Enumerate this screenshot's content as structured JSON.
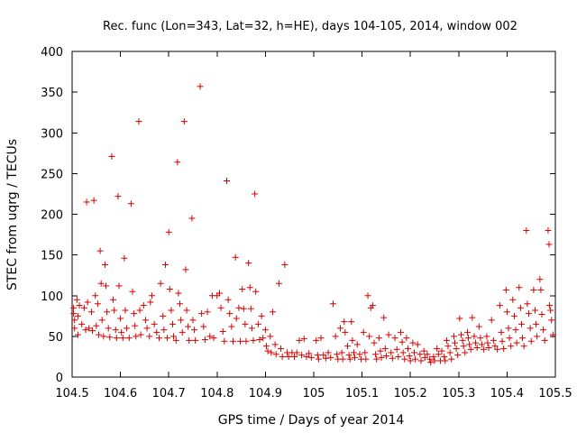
{
  "chart_data": {
    "type": "scatter",
    "title": "Rec. func (Lon=343, Lat=32, h=HE), days 104-105, 2014, window 002",
    "xlabel": "GPS time / Days of year 2014",
    "ylabel": "STEC from uqrg / TECUs",
    "xlim": [
      104.5,
      105.5
    ],
    "ylim": [
      0,
      400
    ],
    "xticks": [
      104.5,
      104.6,
      104.7,
      104.8,
      104.9,
      105,
      105.1,
      105.2,
      105.3,
      105.4,
      105.5
    ],
    "xtick_labels": [
      "104.5",
      "104.6",
      "104.7",
      "104.8",
      "104.9",
      "105",
      "105.1",
      "105.2",
      "105.3",
      "105.4",
      "105.5"
    ],
    "yticks": [
      0,
      50,
      100,
      150,
      200,
      250,
      300,
      350,
      400
    ],
    "ytick_labels": [
      "0",
      "50",
      "100",
      "150",
      "200",
      "250",
      "300",
      "350",
      "400"
    ],
    "marker": "+",
    "color": "#d40000",
    "grid": false,
    "series": [
      {
        "name": "STEC",
        "points": [
          [
            104.503,
            85
          ],
          [
            104.503,
            78
          ],
          [
            104.505,
            70
          ],
          [
            104.505,
            60
          ],
          [
            104.51,
            95
          ],
          [
            104.512,
            75
          ],
          [
            104.512,
            52
          ],
          [
            104.515,
            88
          ],
          [
            104.52,
            65
          ],
          [
            104.525,
            85
          ],
          [
            104.528,
            58
          ],
          [
            104.53,
            215
          ],
          [
            104.532,
            92
          ],
          [
            104.535,
            60
          ],
          [
            104.54,
            80
          ],
          [
            104.542,
            57
          ],
          [
            104.545,
            217
          ],
          [
            104.548,
            100
          ],
          [
            104.55,
            63
          ],
          [
            104.553,
            90
          ],
          [
            104.555,
            52
          ],
          [
            104.558,
            155
          ],
          [
            104.56,
            115
          ],
          [
            104.562,
            70
          ],
          [
            104.565,
            50
          ],
          [
            104.568,
            138
          ],
          [
            104.57,
            112
          ],
          [
            104.572,
            80
          ],
          [
            104.575,
            60
          ],
          [
            104.578,
            49
          ],
          [
            104.582,
            271
          ],
          [
            104.585,
            95
          ],
          [
            104.587,
            82
          ],
          [
            104.59,
            58
          ],
          [
            104.592,
            48
          ],
          [
            104.595,
            222
          ],
          [
            104.597,
            112
          ],
          [
            104.6,
            72
          ],
          [
            104.602,
            55
          ],
          [
            104.605,
            48
          ],
          [
            104.608,
            146
          ],
          [
            104.61,
            82
          ],
          [
            104.613,
            60
          ],
          [
            104.618,
            48
          ],
          [
            104.622,
            213
          ],
          [
            104.625,
            105
          ],
          [
            104.628,
            78
          ],
          [
            104.63,
            63
          ],
          [
            104.632,
            50
          ],
          [
            104.638,
            314
          ],
          [
            104.64,
            82
          ],
          [
            104.642,
            52
          ],
          [
            104.648,
            88
          ],
          [
            104.652,
            70
          ],
          [
            104.655,
            60
          ],
          [
            104.66,
            50
          ],
          [
            104.662,
            92
          ],
          [
            104.665,
            100
          ],
          [
            104.67,
            65
          ],
          [
            104.675,
            55
          ],
          [
            104.68,
            48
          ],
          [
            104.683,
            115
          ],
          [
            104.688,
            75
          ],
          [
            104.69,
            58
          ],
          [
            104.693,
            138
          ],
          [
            104.697,
            48
          ],
          [
            104.7,
            178
          ],
          [
            104.702,
            108
          ],
          [
            104.705,
            82
          ],
          [
            104.708,
            65
          ],
          [
            104.71,
            50
          ],
          [
            104.715,
            45
          ],
          [
            104.718,
            264
          ],
          [
            104.72,
            103
          ],
          [
            104.723,
            90
          ],
          [
            104.725,
            70
          ],
          [
            104.728,
            55
          ],
          [
            104.732,
            314
          ],
          [
            104.735,
            132
          ],
          [
            104.737,
            82
          ],
          [
            104.74,
            62
          ],
          [
            104.742,
            45
          ],
          [
            104.748,
            195
          ],
          [
            104.75,
            70
          ],
          [
            104.753,
            58
          ],
          [
            104.755,
            45
          ],
          [
            104.765,
            357
          ],
          [
            104.768,
            78
          ],
          [
            104.772,
            62
          ],
          [
            104.775,
            46
          ],
          [
            104.78,
            80
          ],
          [
            104.785,
            50
          ],
          [
            104.79,
            100
          ],
          [
            104.793,
            48
          ],
          [
            104.8,
            100
          ],
          [
            104.805,
            103
          ],
          [
            104.808,
            85
          ],
          [
            104.812,
            56
          ],
          [
            104.815,
            44
          ],
          [
            104.82,
            241
          ],
          [
            104.823,
            95
          ],
          [
            104.826,
            78
          ],
          [
            104.83,
            62
          ],
          [
            104.833,
            44
          ],
          [
            104.838,
            147
          ],
          [
            104.84,
            72
          ],
          [
            104.845,
            85
          ],
          [
            104.848,
            44
          ],
          [
            104.852,
            108
          ],
          [
            104.855,
            84
          ],
          [
            104.858,
            65
          ],
          [
            104.86,
            44
          ],
          [
            104.865,
            140
          ],
          [
            104.868,
            110
          ],
          [
            104.87,
            84
          ],
          [
            104.872,
            60
          ],
          [
            104.875,
            45
          ],
          [
            104.878,
            225
          ],
          [
            104.88,
            105
          ],
          [
            104.885,
            65
          ],
          [
            104.888,
            46
          ],
          [
            104.892,
            75
          ],
          [
            104.895,
            48
          ],
          [
            104.9,
            58
          ],
          [
            104.902,
            38
          ],
          [
            104.905,
            32
          ],
          [
            104.91,
            50
          ],
          [
            104.912,
            30
          ],
          [
            104.915,
            80
          ],
          [
            104.92,
            40
          ],
          [
            104.922,
            28
          ],
          [
            104.928,
            115
          ],
          [
            104.932,
            35
          ],
          [
            104.935,
            25
          ],
          [
            104.94,
            138
          ],
          [
            104.945,
            30
          ],
          [
            104.948,
            25
          ],
          [
            104.955,
            30
          ],
          [
            104.96,
            25
          ],
          [
            104.965,
            30
          ],
          [
            104.97,
            45
          ],
          [
            104.975,
            27
          ],
          [
            104.98,
            47
          ],
          [
            104.985,
            25
          ],
          [
            104.99,
            29
          ],
          [
            104.995,
            24
          ],
          [
            105.005,
            45
          ],
          [
            105.008,
            27
          ],
          [
            105.01,
            22
          ],
          [
            105.015,
            48
          ],
          [
            105.02,
            27
          ],
          [
            105.025,
            23
          ],
          [
            105.03,
            30
          ],
          [
            105.035,
            24
          ],
          [
            105.04,
            90
          ],
          [
            105.045,
            50
          ],
          [
            105.048,
            28
          ],
          [
            105.05,
            22
          ],
          [
            105.055,
            60
          ],
          [
            105.058,
            30
          ],
          [
            105.06,
            22
          ],
          [
            105.063,
            68
          ],
          [
            105.065,
            55
          ],
          [
            105.07,
            38
          ],
          [
            105.073,
            27
          ],
          [
            105.075,
            22
          ],
          [
            105.078,
            68
          ],
          [
            105.08,
            45
          ],
          [
            105.083,
            30
          ],
          [
            105.085,
            24
          ],
          [
            105.09,
            40
          ],
          [
            105.095,
            28
          ],
          [
            105.098,
            22
          ],
          [
            105.103,
            55
          ],
          [
            105.106,
            30
          ],
          [
            105.108,
            22
          ],
          [
            105.112,
            100
          ],
          [
            105.115,
            50
          ],
          [
            105.118,
            85
          ],
          [
            105.122,
            88
          ],
          [
            105.125,
            42
          ],
          [
            105.128,
            28
          ],
          [
            105.13,
            22
          ],
          [
            105.135,
            48
          ],
          [
            105.138,
            32
          ],
          [
            105.14,
            24
          ],
          [
            105.145,
            73
          ],
          [
            105.148,
            35
          ],
          [
            105.15,
            26
          ],
          [
            105.155,
            52
          ],
          [
            105.16,
            30
          ],
          [
            105.163,
            23
          ],
          [
            105.168,
            48
          ],
          [
            105.172,
            34
          ],
          [
            105.175,
            25
          ],
          [
            105.18,
            55
          ],
          [
            105.183,
            43
          ],
          [
            105.185,
            30
          ],
          [
            105.188,
            22
          ],
          [
            105.192,
            48
          ],
          [
            105.195,
            35
          ],
          [
            105.198,
            26
          ],
          [
            105.2,
            20
          ],
          [
            105.205,
            42
          ],
          [
            105.208,
            30
          ],
          [
            105.21,
            22
          ],
          [
            105.215,
            40
          ],
          [
            105.22,
            28
          ],
          [
            105.222,
            20
          ],
          [
            105.228,
            32
          ],
          [
            105.23,
            24
          ],
          [
            105.235,
            28
          ],
          [
            105.24,
            22
          ],
          [
            105.242,
            18
          ],
          [
            105.248,
            25
          ],
          [
            105.25,
            20
          ],
          [
            105.255,
            35
          ],
          [
            105.258,
            28
          ],
          [
            105.262,
            20
          ],
          [
            105.265,
            32
          ],
          [
            105.27,
            25
          ],
          [
            105.272,
            20
          ],
          [
            105.275,
            45
          ],
          [
            105.278,
            38
          ],
          [
            105.282,
            30
          ],
          [
            105.285,
            22
          ],
          [
            105.29,
            50
          ],
          [
            105.292,
            42
          ],
          [
            105.295,
            35
          ],
          [
            105.298,
            27
          ],
          [
            105.302,
            72
          ],
          [
            105.305,
            52
          ],
          [
            105.308,
            45
          ],
          [
            105.31,
            38
          ],
          [
            105.313,
            30
          ],
          [
            105.318,
            55
          ],
          [
            105.32,
            48
          ],
          [
            105.322,
            40
          ],
          [
            105.325,
            34
          ],
          [
            105.328,
            73
          ],
          [
            105.332,
            50
          ],
          [
            105.335,
            42
          ],
          [
            105.338,
            36
          ],
          [
            105.342,
            62
          ],
          [
            105.345,
            48
          ],
          [
            105.348,
            40
          ],
          [
            105.352,
            34
          ],
          [
            105.358,
            50
          ],
          [
            105.36,
            42
          ],
          [
            105.362,
            36
          ],
          [
            105.368,
            70
          ],
          [
            105.372,
            45
          ],
          [
            105.375,
            38
          ],
          [
            105.38,
            34
          ],
          [
            105.385,
            88
          ],
          [
            105.388,
            55
          ],
          [
            105.39,
            44
          ],
          [
            105.393,
            35
          ],
          [
            105.398,
            107
          ],
          [
            105.4,
            80
          ],
          [
            105.403,
            60
          ],
          [
            105.405,
            48
          ],
          [
            105.408,
            38
          ],
          [
            105.412,
            95
          ],
          [
            105.415,
            75
          ],
          [
            105.418,
            58
          ],
          [
            105.42,
            42
          ],
          [
            105.425,
            110
          ],
          [
            105.428,
            85
          ],
          [
            105.43,
            65
          ],
          [
            105.432,
            48
          ],
          [
            105.435,
            38
          ],
          [
            105.44,
            180
          ],
          [
            105.442,
            90
          ],
          [
            105.445,
            78
          ],
          [
            105.448,
            60
          ],
          [
            105.45,
            44
          ],
          [
            105.455,
            107
          ],
          [
            105.458,
            82
          ],
          [
            105.46,
            65
          ],
          [
            105.462,
            50
          ],
          [
            105.468,
            120
          ],
          [
            105.47,
            107
          ],
          [
            105.472,
            77
          ],
          [
            105.475,
            58
          ],
          [
            105.478,
            45
          ],
          [
            105.485,
            180
          ],
          [
            105.487,
            163
          ],
          [
            105.488,
            88
          ],
          [
            105.49,
            82
          ],
          [
            105.492,
            70
          ],
          [
            105.495,
            52
          ]
        ]
      }
    ]
  }
}
